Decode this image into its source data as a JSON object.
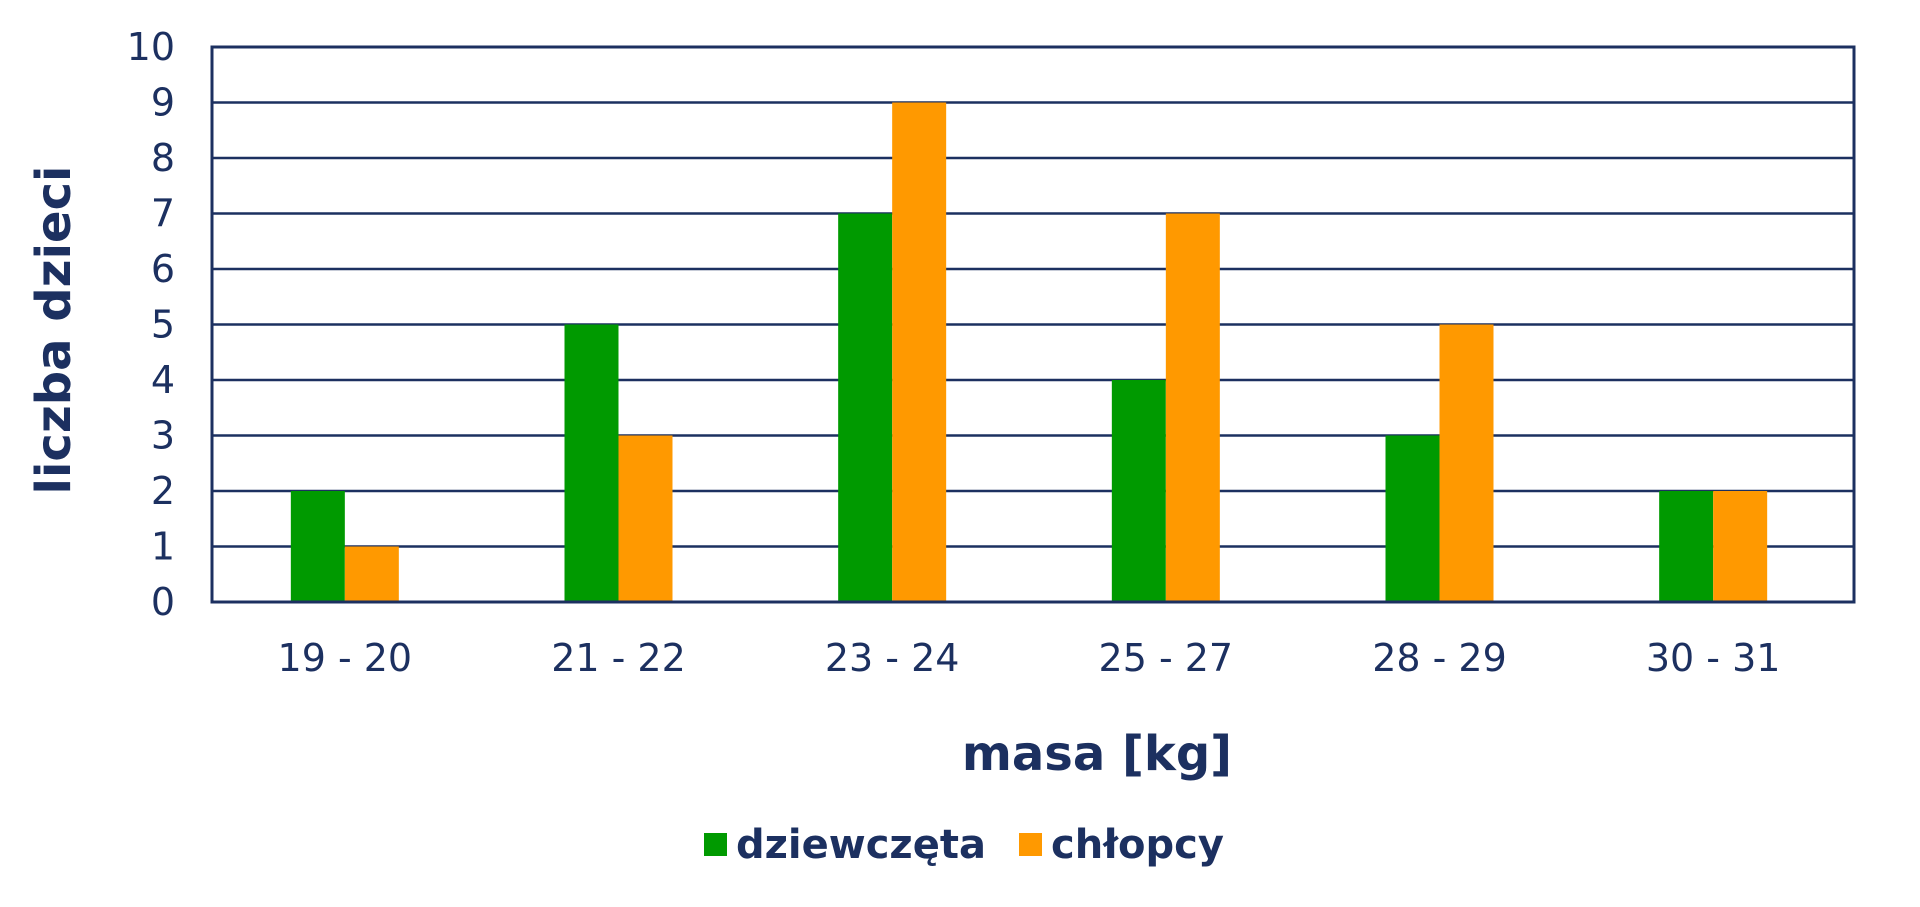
{
  "chart_data": {
    "type": "bar",
    "categories": [
      "19 - 20",
      "21 - 22",
      "23 - 24",
      "25 - 27",
      "28 - 29",
      "30 - 31"
    ],
    "series": [
      {
        "name": "dziewczęta",
        "values": [
          2,
          5,
          7,
          4,
          3,
          2
        ],
        "color": "#009a00"
      },
      {
        "name": "chłopcy",
        "values": [
          1,
          3,
          9,
          7,
          5,
          2
        ],
        "color": "#ff9900"
      }
    ],
    "title": "",
    "xlabel": "masa [kg]",
    "ylabel": "liczba dzieci",
    "ylim": [
      0,
      10
    ],
    "yticks": [
      "0",
      "1",
      "2",
      "3",
      "4",
      "5",
      "6",
      "7",
      "8",
      "9",
      "10"
    ],
    "grid": true,
    "legend_position": "bottom",
    "colors": {
      "axis": "#1c3060",
      "text": "#1c3060"
    }
  }
}
